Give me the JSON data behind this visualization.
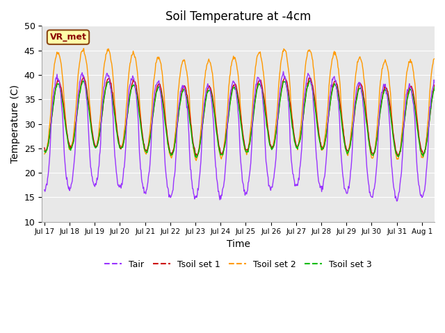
{
  "title": "Soil Temperature at -4cm",
  "xlabel": "Time",
  "ylabel": "Temperature (C)",
  "ylim": [
    10,
    50
  ],
  "yticks": [
    10,
    15,
    20,
    25,
    30,
    35,
    40,
    45,
    50
  ],
  "legend_labels": [
    "Tair",
    "Tsoil set 1",
    "Tsoil set 2",
    "Tsoil set 3"
  ],
  "legend_colors": [
    "#9933ff",
    "#cc0000",
    "#ff9900",
    "#00bb00"
  ],
  "annotation_text": "VR_met",
  "bg_color": "#e8e8e8",
  "title_fontsize": 12,
  "axis_fontsize": 10,
  "tick_labels": [
    "Jul 17",
    "Jul 18",
    "Jul 19",
    "Jul 20",
    "Jul 21",
    "Jul 22",
    "Jul 23",
    "Jul 24",
    "Jul 25",
    "Jul 26",
    "Jul 27",
    "Jul 28",
    "Jul 29",
    "Jul 30",
    "Jul 31",
    "Aug 1"
  ]
}
